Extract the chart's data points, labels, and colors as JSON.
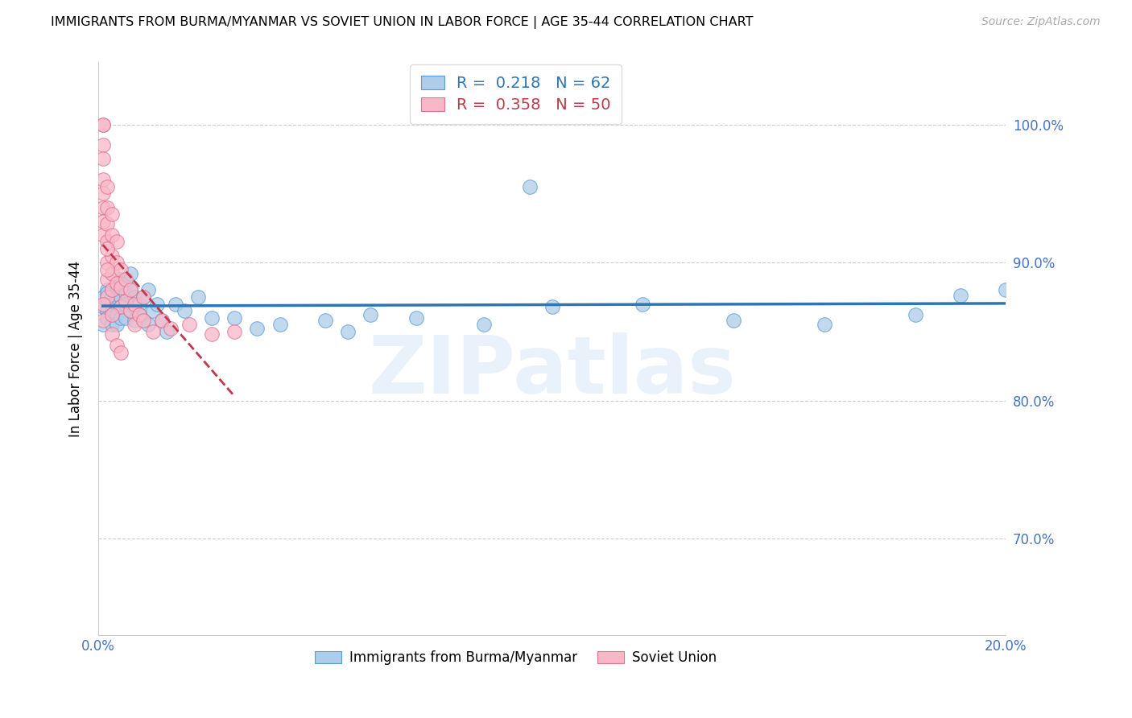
{
  "title": "IMMIGRANTS FROM BURMA/MYANMAR VS SOVIET UNION IN LABOR FORCE | AGE 35-44 CORRELATION CHART",
  "source": "Source: ZipAtlas.com",
  "ylabel": "In Labor Force | Age 35-44",
  "xlim": [
    0.0,
    0.2
  ],
  "ylim": [
    0.63,
    1.045
  ],
  "xticks": [
    0.0,
    0.04,
    0.08,
    0.12,
    0.16,
    0.2
  ],
  "xticklabels": [
    "0.0%",
    "",
    "",
    "",
    "",
    "20.0%"
  ],
  "yticks": [
    0.7,
    0.8,
    0.9,
    1.0
  ],
  "yticklabels": [
    "70.0%",
    "80.0%",
    "90.0%",
    "100.0%"
  ],
  "blue_R": 0.218,
  "blue_N": 62,
  "pink_R": 0.358,
  "pink_N": 50,
  "blue_face_color": "#aecde8",
  "pink_face_color": "#f9b8c8",
  "blue_edge_color": "#5b9bd5",
  "pink_edge_color": "#e07090",
  "blue_line_color": "#2e75b6",
  "pink_line_color": "#c0384b",
  "grid_color": "#cccccc",
  "watermark": "ZIPatlas",
  "legend_label_blue": "Immigrants from Burma/Myanmar",
  "legend_label_pink": "Soviet Union",
  "tick_color": "#4472c4",
  "blue_scatter_x": [
    0.001,
    0.001,
    0.001,
    0.002,
    0.002,
    0.002,
    0.002,
    0.003,
    0.003,
    0.003,
    0.003,
    0.003,
    0.004,
    0.004,
    0.004,
    0.004,
    0.004,
    0.005,
    0.005,
    0.005,
    0.005,
    0.005,
    0.006,
    0.006,
    0.006,
    0.006,
    0.007,
    0.007,
    0.007,
    0.008,
    0.008,
    0.008,
    0.009,
    0.009,
    0.01,
    0.01,
    0.011,
    0.011,
    0.012,
    0.013,
    0.014,
    0.015,
    0.017,
    0.019,
    0.022,
    0.025,
    0.03,
    0.035,
    0.04,
    0.05,
    0.06,
    0.07,
    0.085,
    0.1,
    0.12,
    0.14,
    0.16,
    0.18,
    0.19,
    0.2,
    0.095,
    0.055
  ],
  "blue_scatter_y": [
    0.868,
    0.875,
    0.855,
    0.88,
    0.865,
    0.878,
    0.86,
    0.875,
    0.865,
    0.88,
    0.87,
    0.855,
    0.882,
    0.87,
    0.875,
    0.862,
    0.855,
    0.885,
    0.875,
    0.868,
    0.888,
    0.86,
    0.878,
    0.87,
    0.885,
    0.86,
    0.892,
    0.88,
    0.865,
    0.875,
    0.868,
    0.858,
    0.87,
    0.862,
    0.875,
    0.858,
    0.88,
    0.855,
    0.865,
    0.87,
    0.858,
    0.85,
    0.87,
    0.865,
    0.875,
    0.86,
    0.86,
    0.852,
    0.855,
    0.858,
    0.862,
    0.86,
    0.855,
    0.868,
    0.87,
    0.858,
    0.855,
    0.862,
    0.876,
    0.88,
    0.955,
    0.85
  ],
  "pink_scatter_x": [
    0.001,
    0.001,
    0.001,
    0.001,
    0.001,
    0.001,
    0.001,
    0.001,
    0.001,
    0.002,
    0.002,
    0.002,
    0.002,
    0.002,
    0.002,
    0.002,
    0.003,
    0.003,
    0.003,
    0.003,
    0.003,
    0.004,
    0.004,
    0.004,
    0.005,
    0.005,
    0.005,
    0.006,
    0.006,
    0.007,
    0.007,
    0.008,
    0.008,
    0.009,
    0.01,
    0.01,
    0.012,
    0.014,
    0.016,
    0.02,
    0.025,
    0.03,
    0.001,
    0.001,
    0.002,
    0.002,
    0.003,
    0.003,
    0.004,
    0.005
  ],
  "pink_scatter_y": [
    1.0,
    1.0,
    0.985,
    0.975,
    0.96,
    0.95,
    0.94,
    0.93,
    0.92,
    0.955,
    0.94,
    0.928,
    0.915,
    0.9,
    0.888,
    0.875,
    0.935,
    0.92,
    0.905,
    0.892,
    0.88,
    0.915,
    0.9,
    0.885,
    0.895,
    0.882,
    0.868,
    0.888,
    0.872,
    0.88,
    0.865,
    0.87,
    0.855,
    0.862,
    0.875,
    0.858,
    0.85,
    0.858,
    0.852,
    0.855,
    0.848,
    0.85,
    0.87,
    0.858,
    0.91,
    0.895,
    0.862,
    0.848,
    0.84,
    0.835
  ]
}
